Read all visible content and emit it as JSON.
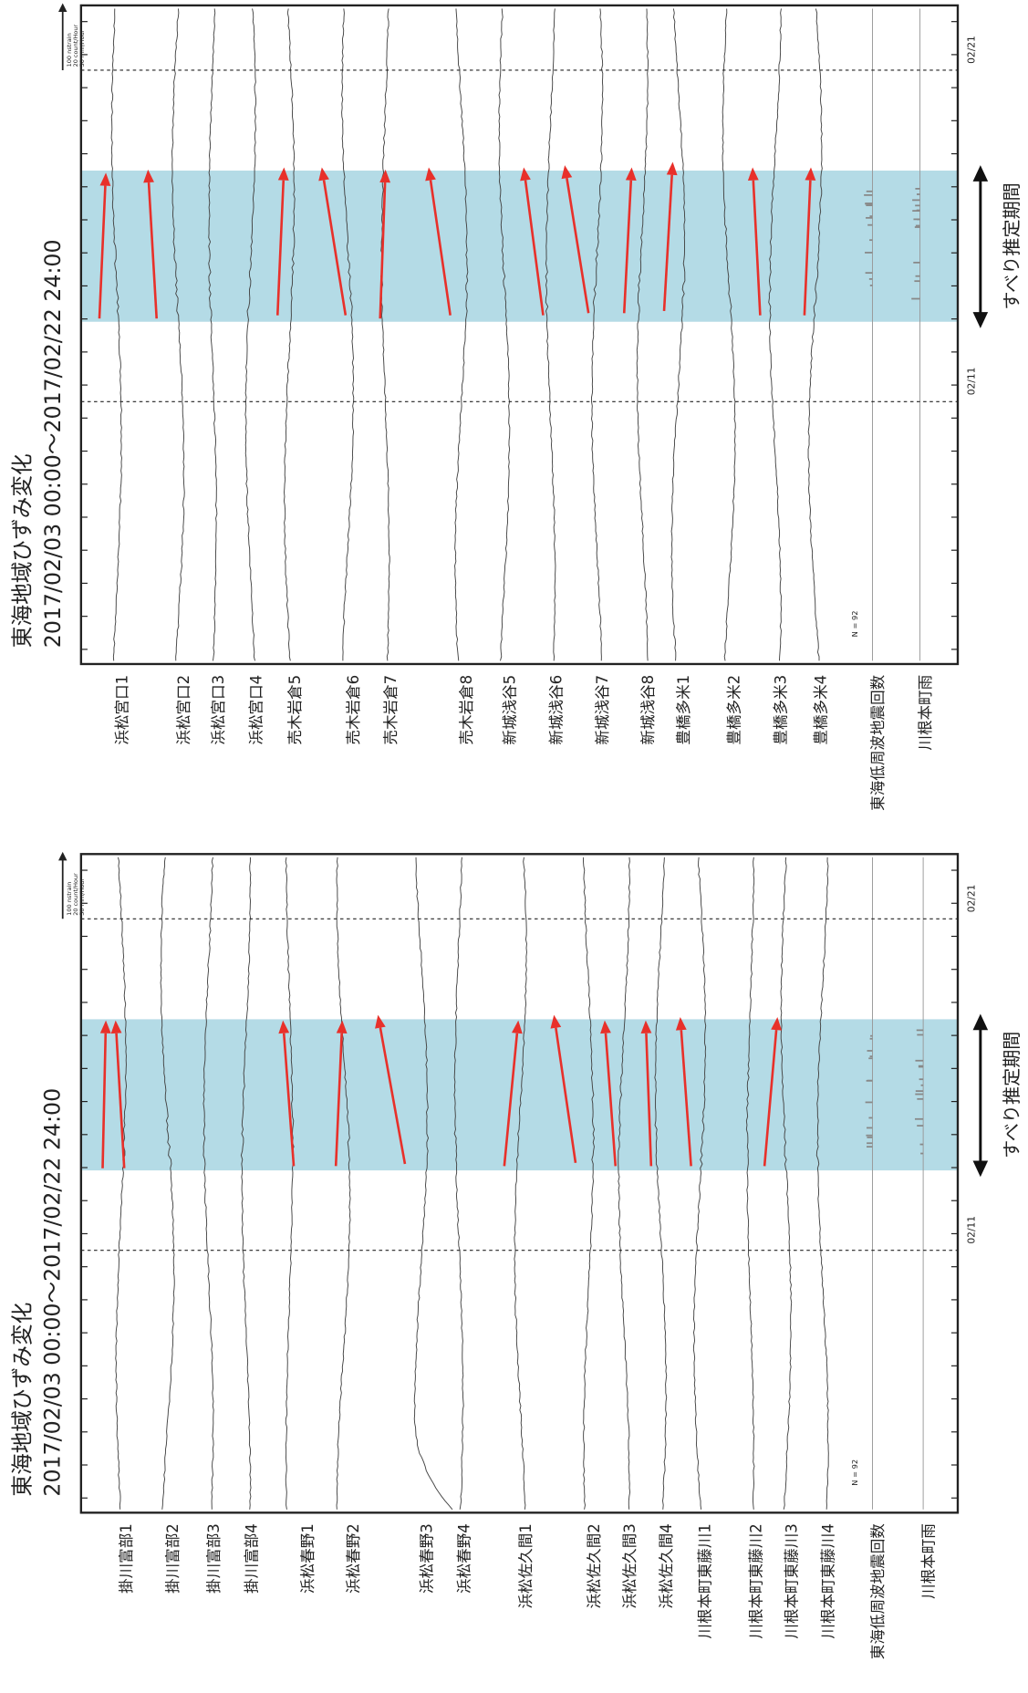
{
  "panels": [
    {
      "title": "東海地域ひずみ変化",
      "period": "2017/02/03 00:00～2017/02/22 24:00",
      "stations": [
        "浜松宮口1",
        "浜松宮口2",
        "浜松宮口3",
        "浜松宮口4",
        "売木岩倉5",
        "売木岩倉6",
        "売木岩倉7",
        "売木岩倉8",
        "新城浅谷5",
        "新城浅谷6",
        "新城浅谷7",
        "新城浅谷8",
        "豊橋多米1",
        "豊橋多米2",
        "豊橋多米3",
        "豊橋多米4",
        "東海低周波地震回数",
        "川根本町雨"
      ],
      "date_labels": [
        "02/11",
        "02/21"
      ],
      "scale_legend": [
        "100 nstrain",
        "20 count/Hour",
        "50 mm/Hour"
      ],
      "count_label": "N = 92",
      "slip_period_label": "すべり推定期間"
    },
    {
      "title": "東海地域ひずみ変化",
      "period": "2017/02/03 00:00～2017/02/22 24:00",
      "stations": [
        "掛川富部1",
        "掛川富部2",
        "掛川富部3",
        "掛川富部4",
        "浜松春野1",
        "浜松春野2",
        "浜松春野3",
        "浜松春野4",
        "浜松佐久間1",
        "浜松佐久間2",
        "浜松佐久間3",
        "浜松佐久間4",
        "川根本町東藤川1",
        "川根本町東藤川2",
        "川根本町東藤川3",
        "川根本町東藤川4",
        "東海低周波地震回数",
        "川根本町雨"
      ],
      "date_labels": [
        "02/11",
        "02/21"
      ],
      "scale_legend": [
        "100 nstrain",
        "20 count/Hour",
        "50 mm/Hour"
      ],
      "count_label": "N = 92",
      "slip_period_label": "すべり推定期間"
    }
  ]
}
